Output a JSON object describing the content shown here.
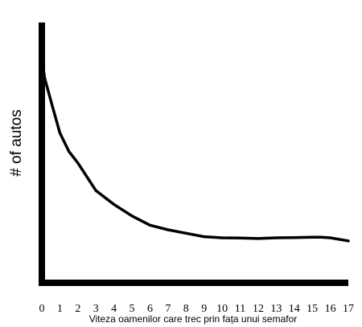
{
  "chart_data": {
    "type": "line",
    "xlabel": "Viteza oamenilor care trec prin fața unui semafor",
    "ylabel": "# of autos",
    "x_ticks": [
      "0",
      "1",
      "2",
      "3",
      "4",
      "5",
      "6",
      "7",
      "8",
      "9",
      "10",
      "11",
      "12",
      "13",
      "14",
      "15",
      "16",
      "17"
    ],
    "xlim": [
      0,
      17
    ],
    "ylim": [
      0,
      100
    ],
    "grid": false,
    "series": [
      {
        "x": [
          0,
          0.15,
          0.5,
          1,
          1.5,
          2,
          2.5,
          3,
          3.5,
          4,
          5,
          6,
          7,
          8,
          9,
          10,
          11,
          12,
          13,
          14,
          15,
          15.5,
          16,
          17
        ],
        "y": [
          98,
          89,
          79,
          65,
          57,
          52,
          46,
          40,
          37,
          34,
          29,
          25,
          23,
          21.5,
          20,
          19.5,
          19.4,
          19.2,
          19.5,
          19.6,
          19.8,
          19.8,
          19.5,
          18.2
        ]
      }
    ],
    "colors": {
      "axis": "#000000",
      "line": "#000000"
    }
  }
}
